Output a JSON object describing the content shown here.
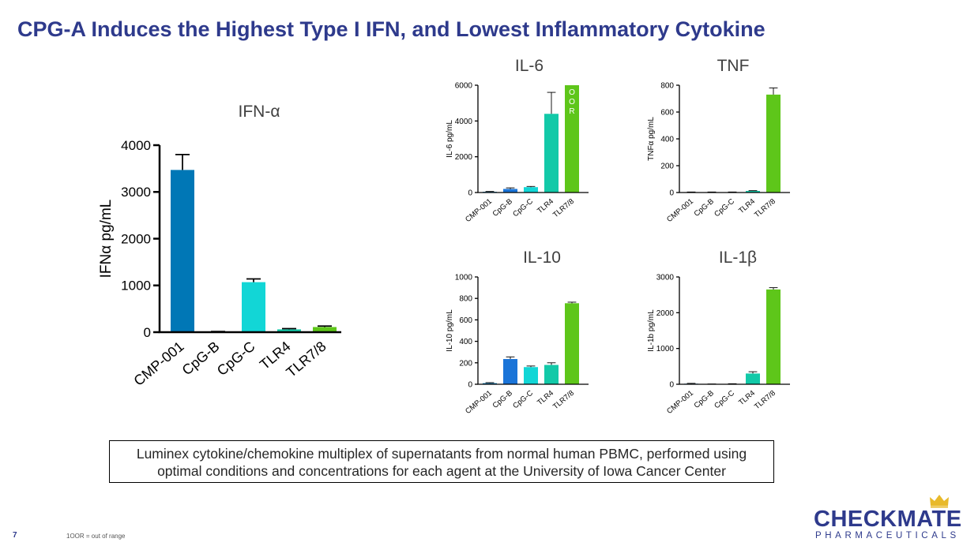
{
  "slide": {
    "title": "CPG-A Induces the Highest Type I IFN, and Lowest Inflammatory Cytokine",
    "caption_line1": "Luminex cytokine/chemokine multiplex of supernatants from normal human PBMC, performed using",
    "caption_line2": "optimal conditions and concentrations for each agent at the University of Iowa Cancer Center",
    "slide_number": "7",
    "footnote": "1OOR = out of range",
    "logo_word": "CHECKMATE",
    "logo_sub": "PHARMACEUTICALS",
    "brand_color": "#2e3a8c",
    "logo_crown_color": "#e8b92a"
  },
  "chart_data": [
    {
      "id": "ifn",
      "type": "bar",
      "title": "IFN-α",
      "ylabel": "IFNα pg/mL",
      "categories": [
        "CMP-001",
        "CpG-B",
        "CpG-C",
        "TLR4",
        "TLR7/8"
      ],
      "values": [
        3470,
        10,
        1070,
        60,
        110
      ],
      "errors": [
        330,
        5,
        70,
        15,
        20
      ],
      "colors": [
        "#0077b6",
        "#1a74d8",
        "#12d6d6",
        "#12c9a8",
        "#5ec61a"
      ],
      "ylim": [
        0,
        4000
      ],
      "yticks": [
        "0",
        "1000",
        "2000",
        "3000",
        "4000"
      ]
    },
    {
      "id": "il6",
      "type": "bar",
      "title": "IL-6",
      "ylabel": "IL-6 pg/mL",
      "categories": [
        "CMP-001",
        "CpG-B",
        "CpG-C",
        "TLR4",
        "TLR7/8"
      ],
      "values": [
        40,
        200,
        300,
        4400,
        6000
      ],
      "errors": [
        20,
        60,
        40,
        1200,
        0
      ],
      "colors": [
        "#0077b6",
        "#1a74d8",
        "#12d6d6",
        "#12c9a8",
        "#5ec61a"
      ],
      "ylim": [
        0,
        6000
      ],
      "yticks": [
        "0",
        "2000",
        "4000",
        "6000"
      ],
      "annotation": {
        "category": "TLR7/8",
        "text": "OOR"
      }
    },
    {
      "id": "tnf",
      "type": "bar",
      "title": "TNF",
      "ylabel": "TNFα pg/mL",
      "categories": [
        "CMP-001",
        "CpG-B",
        "CpG-C",
        "TLR4",
        "TLR7/8"
      ],
      "values": [
        3,
        3,
        3,
        12,
        730
      ],
      "errors": [
        1,
        1,
        1,
        2,
        50
      ],
      "colors": [
        "#0077b6",
        "#1a74d8",
        "#12d6d6",
        "#12c9a8",
        "#5ec61a"
      ],
      "ylim": [
        0,
        800
      ],
      "yticks": [
        "0",
        "200",
        "400",
        "600",
        "800"
      ]
    },
    {
      "id": "il10",
      "type": "bar",
      "title": "IL-10",
      "ylabel": "IL-10 pg/mL",
      "categories": [
        "CMP-001",
        "CpG-B",
        "CpG-C",
        "TLR4",
        "TLR7/8"
      ],
      "values": [
        10,
        235,
        160,
        180,
        755
      ],
      "errors": [
        5,
        20,
        10,
        20,
        10
      ],
      "colors": [
        "#0077b6",
        "#1a74d8",
        "#12d6d6",
        "#12c9a8",
        "#5ec61a"
      ],
      "ylim": [
        0,
        1000
      ],
      "yticks": [
        "0",
        "200",
        "400",
        "600",
        "800",
        "1000"
      ]
    },
    {
      "id": "il1b",
      "type": "bar",
      "title": "IL-1β",
      "ylabel": "IL-1b pg/mL",
      "categories": [
        "CMP-001",
        "CpG-B",
        "CpG-C",
        "TLR4",
        "TLR7/8"
      ],
      "values": [
        15,
        5,
        10,
        300,
        2650
      ],
      "errors": [
        10,
        3,
        5,
        50,
        50
      ],
      "colors": [
        "#0077b6",
        "#1a74d8",
        "#12d6d6",
        "#12c9a8",
        "#5ec61a"
      ],
      "ylim": [
        0,
        3000
      ],
      "yticks": [
        "0",
        "1000",
        "2000",
        "3000"
      ]
    }
  ]
}
